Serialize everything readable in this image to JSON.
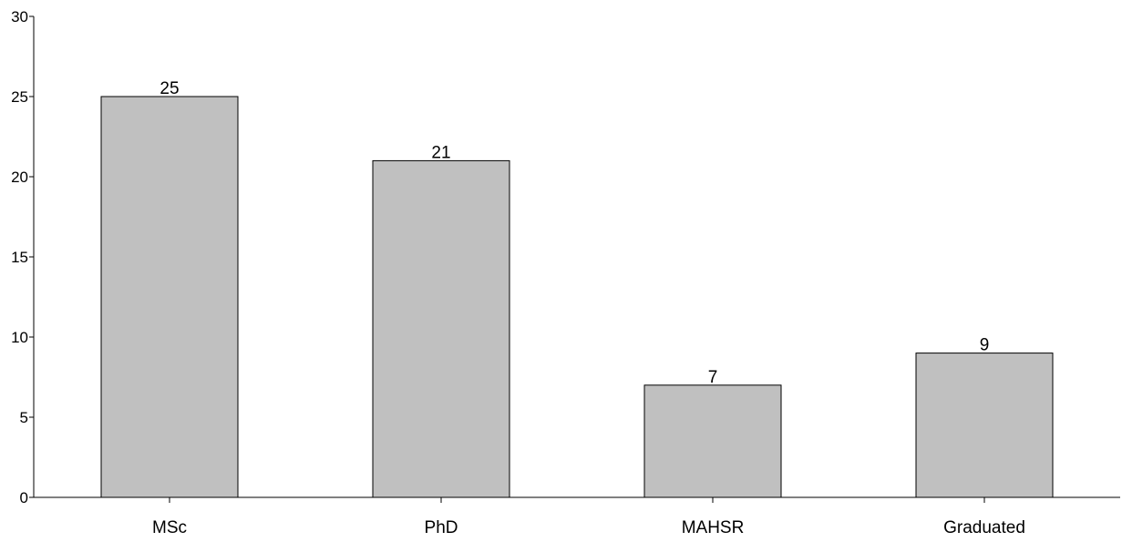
{
  "chart_data": {
    "type": "bar",
    "title": "",
    "xlabel": "",
    "ylabel": "",
    "categories": [
      "MSc",
      "PhD",
      "MAHSR",
      "Graduated"
    ],
    "values": [
      25,
      21,
      7,
      9
    ],
    "data_labels": [
      "25",
      "21",
      "7",
      "9"
    ],
    "ylim": [
      0,
      30
    ],
    "yticks": [
      0,
      5,
      10,
      15,
      20,
      25,
      30
    ],
    "ytick_labels": [
      "0",
      "5",
      "10",
      "15",
      "20",
      "25",
      "30"
    ],
    "grid": false,
    "legend": "none",
    "colors": {
      "bar_fill": "#c0c0c0",
      "bar_stroke": "#000000",
      "axis": "#000000",
      "background": "#ffffff"
    }
  }
}
